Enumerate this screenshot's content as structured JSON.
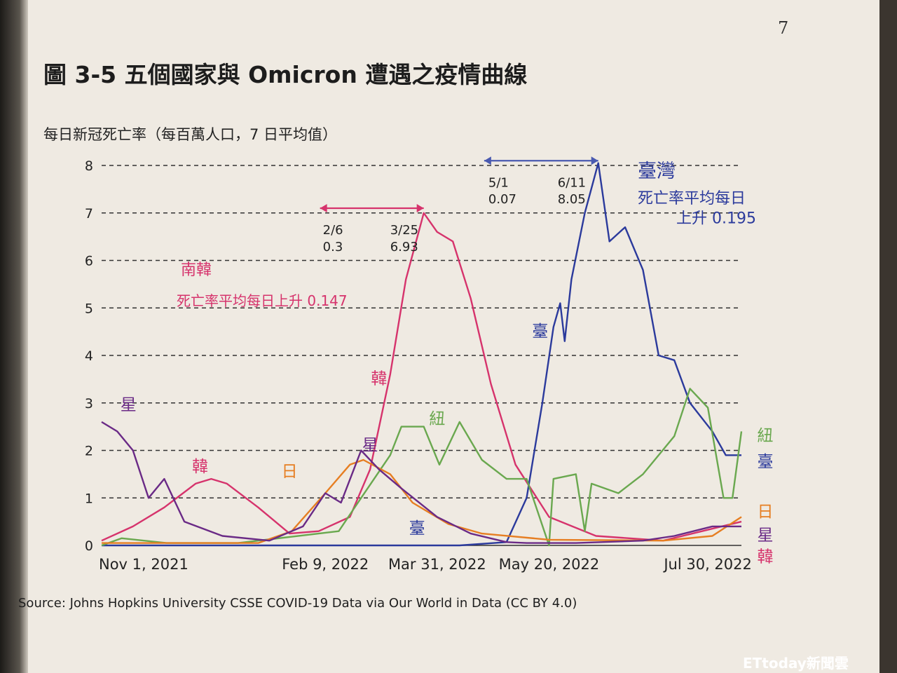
{
  "page_number": "7",
  "figure_title": "圖 3-5 五個國家與 Omicron 遭遇之疫情曲線",
  "chart_data": {
    "type": "line",
    "title": "圖 3-5 五個國家與 Omicron 遭遇之疫情曲線",
    "ylabel": "每日新冠死亡率（每百萬人口，7 日平均值）",
    "ylim": [
      0,
      8
    ],
    "yticks": [
      "0",
      "1",
      "2",
      "3",
      "4",
      "5",
      "6",
      "7",
      "8"
    ],
    "x_range": [
      "2021-11-01",
      "2022-08-14"
    ],
    "xticks": [
      {
        "date": "2021-11-01",
        "label": "Nov 1, 2021"
      },
      {
        "date": "2022-02-09",
        "label": "Feb 9, 2022"
      },
      {
        "date": "2022-03-31",
        "label": "Mar 31, 2022"
      },
      {
        "date": "2022-05-20",
        "label": "May 20, 2022"
      },
      {
        "date": "2022-07-30",
        "label": "Jul 30, 2022"
      }
    ],
    "grid": "horizontal dashed",
    "series": [
      {
        "name": "韓",
        "color": "#d6336c",
        "points": [
          [
            "2021-11-01",
            0.1
          ],
          [
            "2021-11-15",
            0.4
          ],
          [
            "2021-11-29",
            0.8
          ],
          [
            "2021-12-13",
            1.3
          ],
          [
            "2021-12-20",
            1.4
          ],
          [
            "2021-12-27",
            1.3
          ],
          [
            "2022-01-10",
            0.8
          ],
          [
            "2022-01-24",
            0.25
          ],
          [
            "2022-02-06",
            0.3
          ],
          [
            "2022-02-20",
            0.6
          ],
          [
            "2022-03-01",
            1.6
          ],
          [
            "2022-03-10",
            3.6
          ],
          [
            "2022-03-17",
            5.6
          ],
          [
            "2022-03-25",
            7.0
          ],
          [
            "2022-03-31",
            6.6
          ],
          [
            "2022-04-07",
            6.4
          ],
          [
            "2022-04-15",
            5.2
          ],
          [
            "2022-04-24",
            3.4
          ],
          [
            "2022-05-05",
            1.7
          ],
          [
            "2022-05-20",
            0.6
          ],
          [
            "2022-06-10",
            0.2
          ],
          [
            "2022-07-10",
            0.1
          ],
          [
            "2022-08-14",
            0.5
          ]
        ]
      },
      {
        "name": "臺",
        "color": "#2b3a9c",
        "points": [
          [
            "2021-11-01",
            0.0
          ],
          [
            "2022-04-10",
            0.0
          ],
          [
            "2022-05-01",
            0.07
          ],
          [
            "2022-05-10",
            1.0
          ],
          [
            "2022-05-17",
            3.0
          ],
          [
            "2022-05-22",
            4.6
          ],
          [
            "2022-05-25",
            5.1
          ],
          [
            "2022-05-27",
            4.3
          ],
          [
            "2022-05-30",
            5.6
          ],
          [
            "2022-06-05",
            7.0
          ],
          [
            "2022-06-11",
            8.05
          ],
          [
            "2022-06-16",
            6.4
          ],
          [
            "2022-06-23",
            6.7
          ],
          [
            "2022-07-01",
            5.8
          ],
          [
            "2022-07-08",
            4.0
          ],
          [
            "2022-07-15",
            3.9
          ],
          [
            "2022-07-22",
            3.0
          ],
          [
            "2022-08-01",
            2.4
          ],
          [
            "2022-08-07",
            1.9
          ],
          [
            "2022-08-14",
            1.9
          ]
        ]
      },
      {
        "name": "紐",
        "color": "#6aa84f",
        "points": [
          [
            "2021-11-01",
            0.0
          ],
          [
            "2021-11-10",
            0.15
          ],
          [
            "2021-11-30",
            0.05
          ],
          [
            "2022-01-01",
            0.05
          ],
          [
            "2022-02-15",
            0.3
          ],
          [
            "2022-02-25",
            1.0
          ],
          [
            "2022-03-10",
            1.9
          ],
          [
            "2022-03-15",
            2.5
          ],
          [
            "2022-03-25",
            2.5
          ],
          [
            "2022-04-01",
            1.7
          ],
          [
            "2022-04-10",
            2.6
          ],
          [
            "2022-04-20",
            1.8
          ],
          [
            "2022-05-01",
            1.4
          ],
          [
            "2022-05-10",
            1.4
          ],
          [
            "2022-05-20",
            0.0
          ],
          [
            "2022-05-22",
            1.4
          ],
          [
            "2022-06-01",
            1.5
          ],
          [
            "2022-06-05",
            0.3
          ],
          [
            "2022-06-08",
            1.3
          ],
          [
            "2022-06-20",
            1.1
          ],
          [
            "2022-07-01",
            1.5
          ],
          [
            "2022-07-15",
            2.3
          ],
          [
            "2022-07-22",
            3.3
          ],
          [
            "2022-07-30",
            2.9
          ],
          [
            "2022-08-06",
            1.0
          ],
          [
            "2022-08-10",
            1.0
          ],
          [
            "2022-08-14",
            2.4
          ]
        ]
      },
      {
        "name": "日",
        "color": "#e67e22",
        "points": [
          [
            "2021-11-01",
            0.05
          ],
          [
            "2022-01-10",
            0.05
          ],
          [
            "2022-01-25",
            0.3
          ],
          [
            "2022-02-09",
            1.1
          ],
          [
            "2022-02-20",
            1.7
          ],
          [
            "2022-02-26",
            1.8
          ],
          [
            "2022-03-10",
            1.5
          ],
          [
            "2022-03-20",
            0.9
          ],
          [
            "2022-04-05",
            0.45
          ],
          [
            "2022-04-20",
            0.25
          ],
          [
            "2022-05-20",
            0.12
          ],
          [
            "2022-07-10",
            0.1
          ],
          [
            "2022-08-01",
            0.2
          ],
          [
            "2022-08-14",
            0.6
          ]
        ]
      },
      {
        "name": "星",
        "color": "#6a2a86",
        "points": [
          [
            "2021-11-01",
            2.6
          ],
          [
            "2021-11-08",
            2.4
          ],
          [
            "2021-11-15",
            2.0
          ],
          [
            "2021-11-22",
            1.0
          ],
          [
            "2021-11-29",
            1.4
          ],
          [
            "2021-12-08",
            0.5
          ],
          [
            "2021-12-25",
            0.2
          ],
          [
            "2022-01-15",
            0.1
          ],
          [
            "2022-01-30",
            0.4
          ],
          [
            "2022-02-09",
            1.1
          ],
          [
            "2022-02-16",
            0.9
          ],
          [
            "2022-02-25",
            2.0
          ],
          [
            "2022-03-05",
            1.6
          ],
          [
            "2022-03-15",
            1.2
          ],
          [
            "2022-03-31",
            0.6
          ],
          [
            "2022-04-15",
            0.25
          ],
          [
            "2022-05-01",
            0.07
          ],
          [
            "2022-05-10",
            0.05
          ],
          [
            "2022-06-01",
            0.05
          ],
          [
            "2022-07-01",
            0.1
          ],
          [
            "2022-07-15",
            0.2
          ],
          [
            "2022-08-01",
            0.4
          ],
          [
            "2022-08-14",
            0.4
          ]
        ]
      }
    ],
    "annotations": {
      "korea_dates": [
        "2/6",
        "3/25"
      ],
      "korea_values": [
        "0.3",
        "6.93"
      ],
      "korea_title": "南韓",
      "korea_note": "死亡率平均每日上升 0.147",
      "taiwan_dates": [
        "5/1",
        "6/11"
      ],
      "taiwan_values": [
        "0.07",
        "8.05"
      ],
      "taiwan_title": "臺灣",
      "taiwan_note_1": "死亡率平均每日",
      "taiwan_note_2": "上升 0.195"
    }
  },
  "source": "Source: Johns Hopkins University CSSE COVID-19 Data via Our World in Data (CC BY 4.0)",
  "watermark": "ETtoday新聞雲"
}
